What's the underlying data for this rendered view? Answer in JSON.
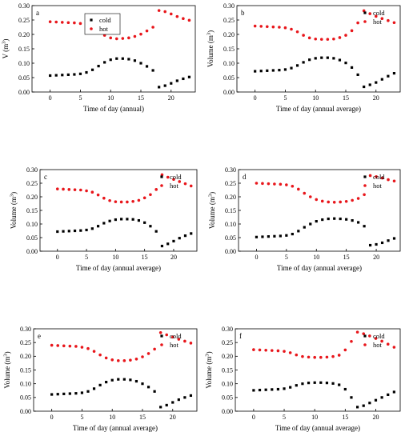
{
  "colors": {
    "cold": "#000000",
    "hot": "#e8161b",
    "axis": "#000000",
    "background": "#ffffff"
  },
  "chart_data": [
    {
      "type": "scatter",
      "panel": "a",
      "xlabel": "Time of day (annual)",
      "ylabel_main": "V (m",
      "ylabel_sup": "3",
      "ylabel_end": ")",
      "xlim": [
        -3,
        24
      ],
      "ylim": [
        0,
        0.3
      ],
      "x_ticks": [
        0,
        5,
        10,
        15,
        20
      ],
      "y_ticks": [
        "0.00",
        "0.05",
        "0.10",
        "0.15",
        "0.20",
        "0.25",
        "0.30"
      ],
      "legend": {
        "position": "top-center"
      },
      "series": [
        {
          "name": "cold",
          "color": "cold",
          "x": [
            0,
            1,
            2,
            3,
            4,
            5,
            6,
            7,
            8,
            9,
            10,
            11,
            12,
            13,
            14,
            15,
            16,
            17,
            18,
            19,
            20,
            21,
            22,
            23
          ],
          "y": [
            0.057,
            0.058,
            0.059,
            0.06,
            0.061,
            0.063,
            0.068,
            0.077,
            0.09,
            0.103,
            0.112,
            0.116,
            0.116,
            0.114,
            0.109,
            0.1,
            0.089,
            0.075,
            0.017,
            0.022,
            0.03,
            0.039,
            0.046,
            0.052
          ]
        },
        {
          "name": "hot",
          "color": "hot",
          "x": [
            0,
            1,
            2,
            3,
            4,
            5,
            6,
            7,
            8,
            9,
            10,
            11,
            12,
            13,
            14,
            15,
            16,
            17,
            18,
            19,
            20,
            21,
            22,
            23
          ],
          "y": [
            0.244,
            0.243,
            0.242,
            0.241,
            0.24,
            0.238,
            0.233,
            0.223,
            0.21,
            0.197,
            0.188,
            0.185,
            0.186,
            0.188,
            0.193,
            0.201,
            0.212,
            0.225,
            0.283,
            0.279,
            0.271,
            0.262,
            0.255,
            0.249
          ]
        }
      ]
    },
    {
      "type": "scatter",
      "panel": "b",
      "xlabel": "Time of day (annual average)",
      "ylabel_main": "Volume (m",
      "ylabel_sup": "3",
      "ylabel_end": ")",
      "xlim": [
        -3,
        24
      ],
      "ylim": [
        0,
        0.3
      ],
      "x_ticks": [
        0,
        5,
        10,
        15,
        20
      ],
      "y_ticks": [
        "0.00",
        "0.05",
        "0.10",
        "0.15",
        "0.20",
        "0.25",
        "0.30"
      ],
      "legend": {
        "position": "top-right"
      },
      "series": [
        {
          "name": "cold",
          "color": "cold",
          "x": [
            0,
            1,
            2,
            3,
            4,
            5,
            6,
            7,
            8,
            9,
            10,
            11,
            12,
            13,
            14,
            15,
            16,
            17,
            18,
            19,
            20,
            21,
            22,
            23
          ],
          "y": [
            0.072,
            0.073,
            0.074,
            0.075,
            0.076,
            0.078,
            0.083,
            0.092,
            0.103,
            0.112,
            0.117,
            0.119,
            0.119,
            0.117,
            0.111,
            0.101,
            0.085,
            0.06,
            0.018,
            0.025,
            0.033,
            0.044,
            0.055,
            0.065
          ]
        },
        {
          "name": "hot",
          "color": "hot",
          "x": [
            0,
            1,
            2,
            3,
            4,
            5,
            6,
            7,
            8,
            9,
            10,
            11,
            12,
            13,
            14,
            15,
            16,
            17,
            18,
            19,
            20,
            21,
            22,
            23
          ],
          "y": [
            0.229,
            0.228,
            0.227,
            0.226,
            0.225,
            0.223,
            0.218,
            0.209,
            0.197,
            0.188,
            0.184,
            0.183,
            0.183,
            0.184,
            0.189,
            0.197,
            0.213,
            0.24,
            0.282,
            0.272,
            0.263,
            0.255,
            0.248,
            0.241
          ]
        }
      ]
    },
    {
      "type": "scatter",
      "panel": "c",
      "xlabel": "Time of day (annual average)",
      "ylabel_main": "Volume (m",
      "ylabel_sup": "3",
      "ylabel_end": ")",
      "xlim": [
        -3,
        24
      ],
      "ylim": [
        0,
        0.3
      ],
      "x_ticks": [
        0,
        5,
        10,
        15,
        20
      ],
      "y_ticks": [
        "0.00",
        "0.05",
        "0.10",
        "0.15",
        "0.20",
        "0.25",
        "0.30"
      ],
      "legend": {
        "position": "top-right"
      },
      "series": [
        {
          "name": "cold",
          "color": "cold",
          "x": [
            0,
            1,
            2,
            3,
            4,
            5,
            6,
            7,
            8,
            9,
            10,
            11,
            12,
            13,
            14,
            15,
            16,
            17,
            18,
            19,
            20,
            21,
            22,
            23
          ],
          "y": [
            0.072,
            0.073,
            0.074,
            0.075,
            0.076,
            0.078,
            0.083,
            0.092,
            0.103,
            0.111,
            0.116,
            0.118,
            0.118,
            0.117,
            0.113,
            0.105,
            0.092,
            0.073,
            0.019,
            0.027,
            0.037,
            0.048,
            0.057,
            0.065
          ]
        },
        {
          "name": "hot",
          "color": "hot",
          "x": [
            0,
            1,
            2,
            3,
            4,
            5,
            6,
            7,
            8,
            9,
            10,
            11,
            12,
            13,
            14,
            15,
            16,
            17,
            18,
            19,
            20,
            21,
            22,
            23
          ],
          "y": [
            0.229,
            0.228,
            0.227,
            0.226,
            0.225,
            0.222,
            0.217,
            0.207,
            0.195,
            0.186,
            0.182,
            0.181,
            0.181,
            0.183,
            0.187,
            0.196,
            0.208,
            0.227,
            0.281,
            0.272,
            0.264,
            0.256,
            0.248,
            0.24
          ]
        }
      ]
    },
    {
      "type": "scatter",
      "panel": "d",
      "xlabel": "Time of day (annual average)",
      "ylabel_main": "Volume (m",
      "ylabel_sup": "3",
      "ylabel_end": ")",
      "xlim": [
        -3,
        24
      ],
      "ylim": [
        0,
        0.3
      ],
      "x_ticks": [
        0,
        5,
        10,
        15,
        20
      ],
      "y_ticks": [
        "0.00",
        "0.05",
        "0.10",
        "0.15",
        "0.20",
        "0.25",
        "0.30"
      ],
      "legend": {
        "position": "top-right"
      },
      "series": [
        {
          "name": "cold",
          "color": "cold",
          "x": [
            0,
            1,
            2,
            3,
            4,
            5,
            6,
            7,
            8,
            9,
            10,
            11,
            12,
            13,
            14,
            15,
            16,
            17,
            18,
            19,
            20,
            21,
            22,
            23
          ],
          "y": [
            0.052,
            0.053,
            0.054,
            0.055,
            0.056,
            0.058,
            0.063,
            0.074,
            0.088,
            0.1,
            0.11,
            0.116,
            0.119,
            0.12,
            0.119,
            0.117,
            0.113,
            0.106,
            0.092,
            0.022,
            0.025,
            0.031,
            0.039,
            0.047
          ]
        },
        {
          "name": "hot",
          "color": "hot",
          "x": [
            0,
            1,
            2,
            3,
            4,
            5,
            6,
            7,
            8,
            9,
            10,
            11,
            12,
            13,
            14,
            15,
            16,
            17,
            18,
            19,
            20,
            21,
            22,
            23
          ],
          "y": [
            0.25,
            0.249,
            0.248,
            0.247,
            0.246,
            0.244,
            0.239,
            0.228,
            0.213,
            0.2,
            0.19,
            0.184,
            0.181,
            0.18,
            0.181,
            0.183,
            0.187,
            0.194,
            0.208,
            0.278,
            0.274,
            0.269,
            0.263,
            0.258
          ]
        }
      ]
    },
    {
      "type": "scatter",
      "panel": "e",
      "xlabel": "Time of day (annual average)",
      "ylabel_main": "Volume (m",
      "ylabel_sup": "3",
      "ylabel_end": ")",
      "xlim": [
        -3,
        24
      ],
      "ylim": [
        0,
        0.3
      ],
      "x_ticks": [
        0,
        5,
        10,
        15,
        20
      ],
      "y_ticks": [
        "0.00",
        "0.05",
        "0.10",
        "0.15",
        "0.20",
        "0.25",
        "0.30"
      ],
      "legend": {
        "position": "top-right"
      },
      "series": [
        {
          "name": "cold",
          "color": "cold",
          "x": [
            0,
            1,
            2,
            3,
            4,
            5,
            6,
            7,
            8,
            9,
            10,
            11,
            12,
            13,
            14,
            15,
            16,
            17,
            18,
            19,
            20,
            21,
            22,
            23
          ],
          "y": [
            0.061,
            0.062,
            0.063,
            0.064,
            0.065,
            0.067,
            0.072,
            0.082,
            0.095,
            0.106,
            0.113,
            0.116,
            0.116,
            0.114,
            0.109,
            0.1,
            0.088,
            0.072,
            0.015,
            0.022,
            0.032,
            0.042,
            0.05,
            0.057
          ]
        },
        {
          "name": "hot",
          "color": "hot",
          "x": [
            0,
            1,
            2,
            3,
            4,
            5,
            6,
            7,
            8,
            9,
            10,
            11,
            12,
            13,
            14,
            15,
            16,
            17,
            18,
            19,
            20,
            21,
            22,
            23
          ],
          "y": [
            0.24,
            0.239,
            0.238,
            0.237,
            0.236,
            0.233,
            0.228,
            0.218,
            0.205,
            0.194,
            0.187,
            0.184,
            0.184,
            0.186,
            0.19,
            0.198,
            0.21,
            0.226,
            0.286,
            0.278,
            0.27,
            0.262,
            0.255,
            0.248
          ]
        }
      ]
    },
    {
      "type": "scatter",
      "panel": "f",
      "xlabel": "Time of day (annual average)",
      "ylabel_main": "Volume (m",
      "ylabel_sup": "3",
      "ylabel_end": ")",
      "xlim": [
        -3,
        24
      ],
      "ylim": [
        0,
        0.3
      ],
      "x_ticks": [
        0,
        5,
        10,
        15,
        20
      ],
      "y_ticks": [
        "0.00",
        "0.05",
        "0.10",
        "0.15",
        "0.20",
        "0.25",
        "0.30"
      ],
      "legend": {
        "position": "top-right"
      },
      "series": [
        {
          "name": "cold",
          "color": "cold",
          "x": [
            0,
            1,
            2,
            3,
            4,
            5,
            6,
            7,
            8,
            9,
            10,
            11,
            12,
            13,
            14,
            15,
            16,
            17,
            18,
            19,
            20,
            21,
            22,
            23
          ],
          "y": [
            0.076,
            0.077,
            0.078,
            0.079,
            0.08,
            0.082,
            0.087,
            0.094,
            0.1,
            0.103,
            0.104,
            0.104,
            0.103,
            0.101,
            0.096,
            0.08,
            0.05,
            0.015,
            0.02,
            0.03,
            0.04,
            0.05,
            0.06,
            0.07
          ]
        },
        {
          "name": "hot",
          "color": "hot",
          "x": [
            0,
            1,
            2,
            3,
            4,
            5,
            6,
            7,
            8,
            9,
            10,
            11,
            12,
            13,
            14,
            15,
            16,
            17,
            18,
            19,
            20,
            21,
            22,
            23
          ],
          "y": [
            0.224,
            0.223,
            0.222,
            0.221,
            0.22,
            0.218,
            0.213,
            0.205,
            0.199,
            0.197,
            0.196,
            0.196,
            0.197,
            0.199,
            0.204,
            0.223,
            0.254,
            0.288,
            0.282,
            0.274,
            0.265,
            0.255,
            0.244,
            0.233
          ]
        }
      ]
    }
  ]
}
